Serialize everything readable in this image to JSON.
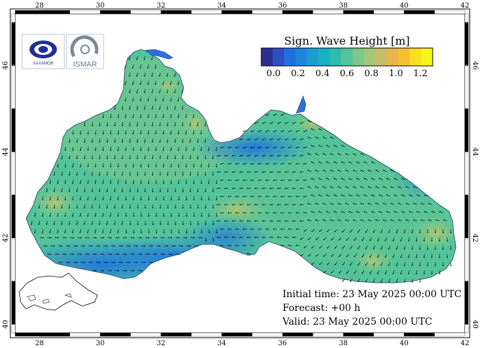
{
  "map": {
    "lon_range": [
      27.2,
      42.0
    ],
    "lat_range": [
      39.8,
      47.2
    ],
    "lon_ticks": [
      "28",
      "30",
      "32",
      "34",
      "36",
      "38",
      "40",
      "42"
    ],
    "lat_ticks": [
      "40",
      "42",
      "44",
      "46"
    ]
  },
  "legend": {
    "title": "Sign. Wave Height [m]",
    "tick_labels": [
      "0.0",
      "0.2",
      "0.4",
      "0.6",
      "0.8",
      "1.0",
      "1.2"
    ],
    "colors": [
      "#2b2f8f",
      "#2d4fc4",
      "#1f6fe0",
      "#1e86dc",
      "#1b9ecf",
      "#1ab0c4",
      "#2dbbb0",
      "#55c39a",
      "#7ac88a",
      "#a2c77a",
      "#c7bd66",
      "#e8b64a",
      "#f5c030",
      "#f7e020",
      "#f6f51a"
    ]
  },
  "info": {
    "initial_time": "Initial time: 23 May 2025 00:00 UTC",
    "forecast": "Forecast: +00 h",
    "valid": "Valid: 23 May 2025 00:00 UTC"
  },
  "logos": [
    {
      "name": "hahamov-logo",
      "text": "ХАХАМОВ"
    },
    {
      "name": "ismar-logo",
      "text": "ISMAR"
    }
  ]
}
